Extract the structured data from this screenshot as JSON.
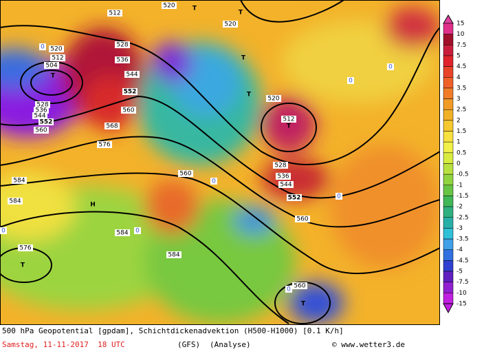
{
  "footer": {
    "description": "500 hPa Geopotential [gpdam], Schichtdickenadvektion (H500-H1000) [0.1 K/h]",
    "date": "Samstag, 11-11-2017  18 UTC",
    "model": "(GFS)",
    "run": "(Analyse)",
    "credit": "© www.wetter3.de"
  },
  "legend": {
    "labels": [
      "15",
      "10",
      "7.5",
      "5",
      "4.5",
      "4",
      "3.5",
      "3",
      "2.5",
      "2",
      "1.5",
      "1",
      "0.5",
      "0",
      "-0.5",
      "-1",
      "-1.5",
      "-2",
      "-2.5",
      "-3",
      "-3.5",
      "-4",
      "-4.5",
      "-5",
      "-7.5",
      "-10",
      "-15"
    ]
  },
  "map": {
    "labels": [
      "512",
      "520",
      "T",
      "520",
      "T",
      "528",
      "536",
      "544",
      "552",
      "560",
      "568",
      "576",
      "584",
      "584",
      "H",
      "584",
      "576",
      "T",
      "584",
      "560",
      "520",
      "512",
      "504",
      "T",
      "528",
      "536",
      "544",
      "552",
      "560",
      "520",
      "T",
      "T",
      "512",
      "T",
      "528",
      "536",
      "544",
      "552",
      "560",
      "560",
      "T",
      "0",
      "0",
      "0",
      "0",
      "0",
      "0",
      "0",
      "0"
    ]
  }
}
